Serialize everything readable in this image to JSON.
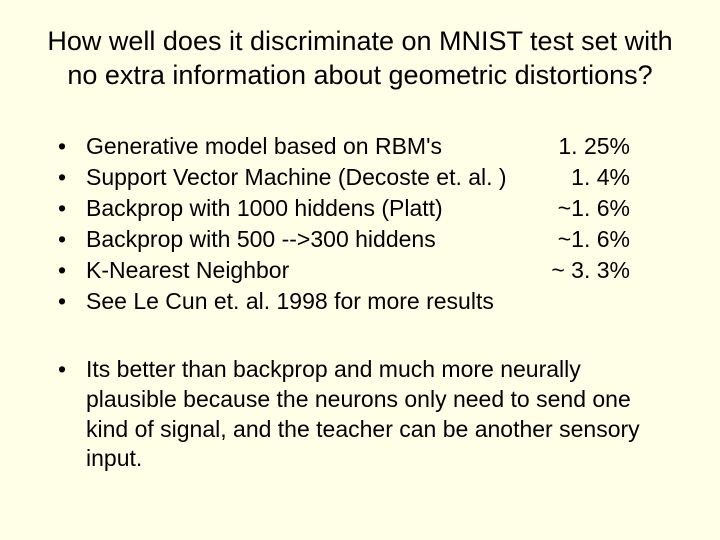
{
  "colors": {
    "background": "#ffffe8",
    "text": "#000000"
  },
  "typography": {
    "title_fontsize": 27,
    "body_fontsize": 23,
    "font_family": "Arial"
  },
  "title": "How well does it discriminate on MNIST test set with no extra information about geometric distortions?",
  "bullet_char": "•",
  "results": [
    {
      "label": "Generative model based on RBM's",
      "value": "1. 25%"
    },
    {
      "label": "Support Vector Machine  (Decoste et. al. )",
      "value": "1. 4%"
    },
    {
      "label": "Backprop with 1000 hiddens (Platt)",
      "value": "~1. 6%"
    },
    {
      "label": "Backprop with 500 -->300 hiddens",
      "value": "~1. 6%"
    },
    {
      "label": "K-Nearest Neighbor",
      "value": "~ 3. 3%"
    },
    {
      "label": "See Le Cun et. al. 1998 for more results",
      "value": ""
    }
  ],
  "footer": "Its better than backprop and much more neurally plausible because the neurons only need to send one kind of signal, and the teacher can be another sensory input."
}
